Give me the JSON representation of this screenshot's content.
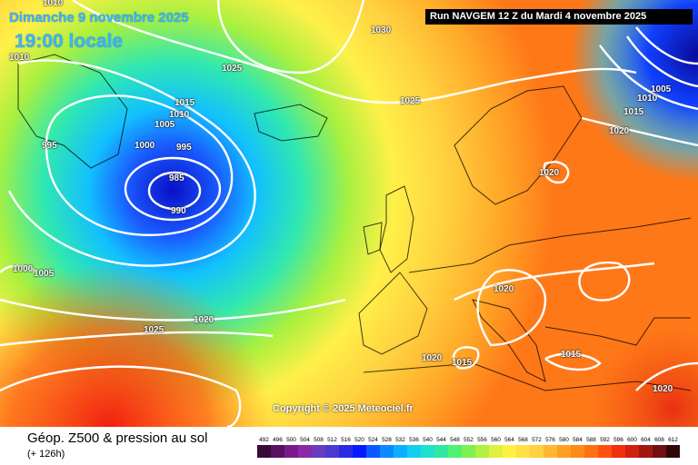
{
  "title": {
    "date_line": "Dimanche 9 novembre 2025",
    "time_line": "19:00 locale"
  },
  "run_info": "Run NAVGEM 12 Z du Mardi 4 novembre 2025",
  "copyright": "Copyright © 2025 Meteociel.fr",
  "footer": {
    "title": "Géop. Z500 & pression au sol",
    "subtitle": "(+ 126h)"
  },
  "isobar_labels": [
    "1010",
    "1030",
    "1010",
    "1025",
    "1015",
    "1010",
    "1005",
    "995",
    "1000",
    "995",
    "985",
    "990",
    "1025",
    "1000",
    "1005",
    "1020",
    "1025",
    "1020",
    "1020",
    "1015",
    "1015",
    "1020",
    "1020",
    "1005",
    "1010",
    "1015",
    "1020"
  ],
  "legend": {
    "values": [
      "492",
      "496",
      "500",
      "504",
      "508",
      "512",
      "516",
      "520",
      "524",
      "528",
      "532",
      "536",
      "540",
      "544",
      "548",
      "552",
      "556",
      "560",
      "564",
      "568",
      "572",
      "576",
      "580",
      "584",
      "588",
      "592",
      "596",
      "600",
      "604",
      "608",
      "612"
    ],
    "colors": [
      "#3a0a3a",
      "#5a1060",
      "#7a1a8a",
      "#8a2aa8",
      "#6a3ac0",
      "#4a3ad0",
      "#2a2ae0",
      "#0a1aff",
      "#0a5aff",
      "#0a8aff",
      "#0ab0ff",
      "#10d0f0",
      "#20e0d0",
      "#30e8a0",
      "#50f070",
      "#80f050",
      "#b0f040",
      "#e0f040",
      "#fff040",
      "#ffe040",
      "#ffd040",
      "#ffb830",
      "#ffa020",
      "#ff8a18",
      "#ff7010",
      "#ff5010",
      "#f03010",
      "#d02010",
      "#a01810",
      "#701010",
      "#300808"
    ]
  }
}
